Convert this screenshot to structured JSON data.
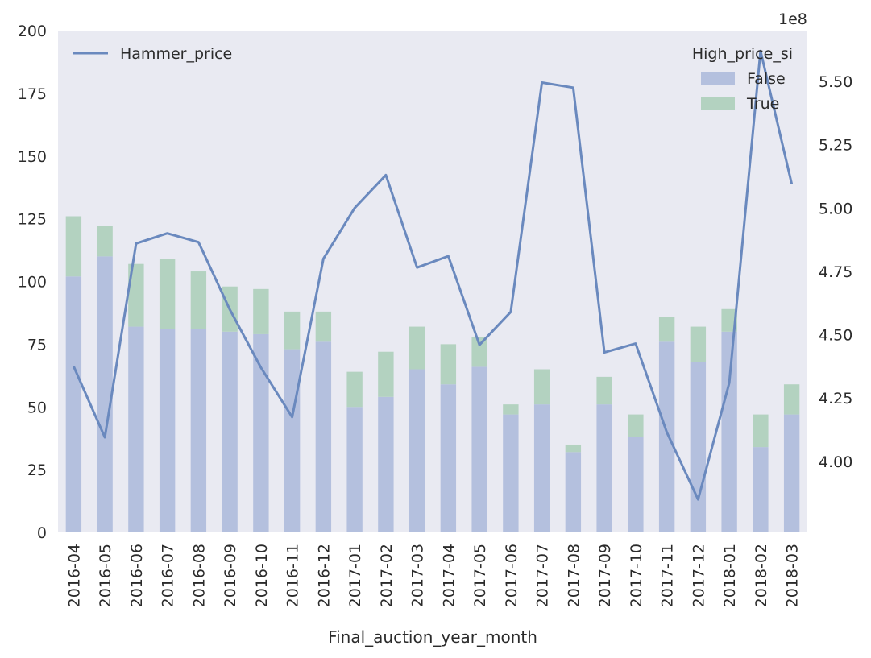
{
  "chart_data": {
    "type": "bar",
    "categories": [
      "2016-04",
      "2016-05",
      "2016-06",
      "2016-07",
      "2016-08",
      "2016-09",
      "2016-10",
      "2016-11",
      "2016-12",
      "2017-01",
      "2017-02",
      "2017-03",
      "2017-04",
      "2017-05",
      "2017-06",
      "2017-07",
      "2017-08",
      "2017-09",
      "2017-10",
      "2017-11",
      "2017-12",
      "2018-01",
      "2018-02",
      "2018-03"
    ],
    "bar_series": [
      {
        "name": "False",
        "color": "#b4c0de",
        "values": [
          102,
          110,
          82,
          81,
          81,
          80,
          79,
          73,
          76,
          50,
          54,
          65,
          59,
          66,
          47,
          51,
          32,
          51,
          38,
          76,
          68,
          80,
          34,
          47
        ]
      },
      {
        "name": "True",
        "color": "#b3d2c0",
        "values": [
          24,
          12,
          25,
          28,
          23,
          18,
          18,
          15,
          12,
          14,
          18,
          17,
          16,
          12,
          4,
          14,
          3,
          11,
          9,
          10,
          14,
          9,
          13,
          12
        ]
      }
    ],
    "line_series": {
      "name": "Hammer_price",
      "color": "#6a89be",
      "values": [
        437500000,
        409500000,
        486000000,
        490000000,
        486500000,
        460000000,
        437000000,
        417500000,
        480000000,
        500000000,
        513000000,
        476500000,
        481000000,
        446000000,
        459000000,
        549500000,
        547500000,
        443000000,
        446500000,
        411500000,
        385000000,
        431000000,
        562000000,
        509500000
      ]
    },
    "xlabel": "Final_auction_year_month",
    "ylim_left": [
      0,
      200
    ],
    "yticks_left": [
      "0",
      "25",
      "50",
      "75",
      "100",
      "125",
      "150",
      "175",
      "200"
    ],
    "ylim_right": [
      372000000,
      570000000
    ],
    "yticks_right": [
      "4.00",
      "4.25",
      "4.50",
      "4.75",
      "5.00",
      "5.25",
      "5.50"
    ],
    "right_axis_multiplier": "1e8",
    "legend_left": {
      "entries": [
        "Hammer_price"
      ],
      "placement": "top-left"
    },
    "legend_right": {
      "title": "High_price_si",
      "entries": [
        "False",
        "True"
      ],
      "placement": "top-right"
    },
    "grid": false,
    "background": "#e9eaf2"
  }
}
